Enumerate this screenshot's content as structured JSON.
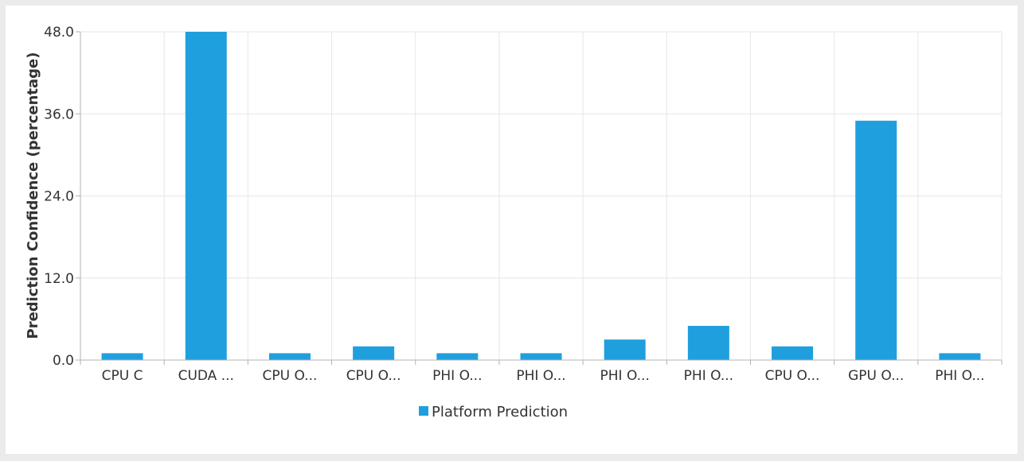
{
  "chart_data": {
    "type": "bar",
    "categories": [
      "CPU C",
      "CUDA ...",
      "CPU O...",
      "CPU O...",
      "PHI O...",
      "PHI O...",
      "PHI O...",
      "PHI O...",
      "CPU O...",
      "GPU O...",
      "PHI O..."
    ],
    "series": [
      {
        "name": "Platform Prediction",
        "values": [
          1,
          48,
          1,
          2,
          1,
          1,
          3,
          5,
          2,
          35,
          1
        ]
      }
    ],
    "ylabel": "Prediction Confidence (percentage)",
    "xlabel": "",
    "ylim": [
      0,
      48
    ],
    "yticks": [
      "0.0",
      "12.0",
      "24.0",
      "36.0",
      "48.0"
    ],
    "grid": true,
    "legend_position": "bottom-center",
    "colors": {
      "bar": "#209fdf",
      "grid": "#e6e6e6",
      "axis": "#b3b3b3",
      "background": "#ffffff",
      "frame": "#ebebeb"
    }
  }
}
